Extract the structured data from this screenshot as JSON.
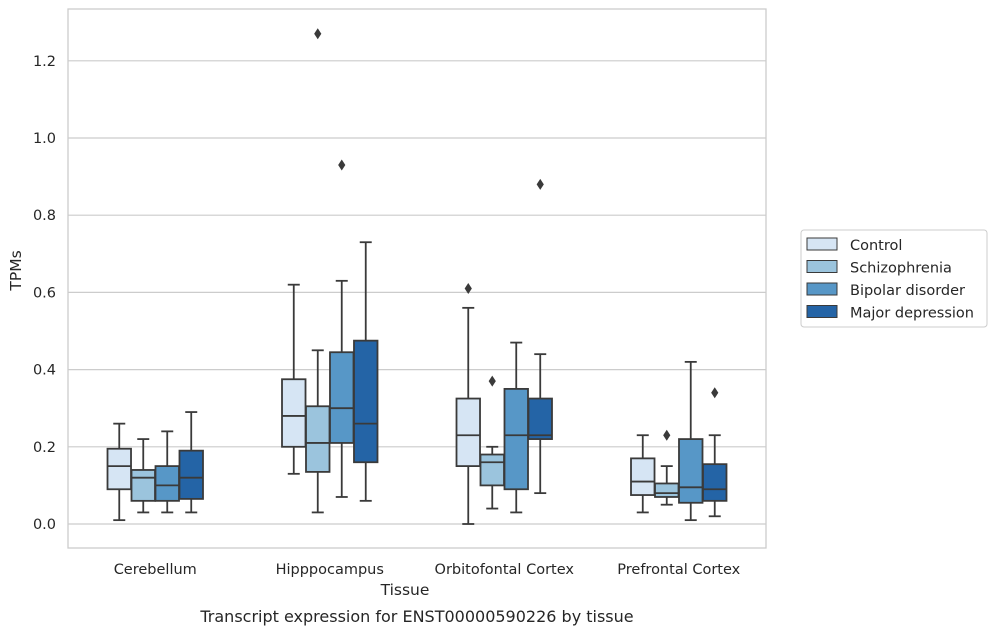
{
  "caption": "Transcript expression for ENST00000590226 by tissue",
  "chart_data": {
    "type": "boxplot",
    "title": "",
    "xlabel": "Tissue",
    "ylabel": "TPMs",
    "ylim": [
      -0.06,
      1.34
    ],
    "yticks": [
      0.0,
      0.2,
      0.4,
      0.6,
      0.8,
      1.0,
      1.2
    ],
    "ytick_labels": [
      "0.0",
      "0.2",
      "0.4",
      "0.6",
      "0.8",
      "1.0",
      "1.2"
    ],
    "grid": "horizontal",
    "legend_position": "right",
    "categories": [
      "Cerebellum",
      "Hipppocampus",
      "Orbitofontal Cortex",
      "Prefrontal Cortex"
    ],
    "series": [
      {
        "name": "Control",
        "color": "#d6e5f4",
        "boxes": [
          {
            "whisker_low": 0.01,
            "q1": 0.09,
            "median": 0.15,
            "q3": 0.195,
            "whisker_high": 0.26,
            "outliers": []
          },
          {
            "whisker_low": 0.13,
            "q1": 0.2,
            "median": 0.28,
            "q3": 0.375,
            "whisker_high": 0.62,
            "outliers": []
          },
          {
            "whisker_low": 0.0,
            "q1": 0.15,
            "median": 0.23,
            "q3": 0.325,
            "whisker_high": 0.56,
            "outliers": [
              0.61
            ]
          },
          {
            "whisker_low": 0.03,
            "q1": 0.075,
            "median": 0.11,
            "q3": 0.17,
            "whisker_high": 0.23,
            "outliers": []
          }
        ]
      },
      {
        "name": "Schizophrenia",
        "color": "#9bc4dd",
        "boxes": [
          {
            "whisker_low": 0.03,
            "q1": 0.06,
            "median": 0.12,
            "q3": 0.14,
            "whisker_high": 0.22,
            "outliers": []
          },
          {
            "whisker_low": 0.03,
            "q1": 0.135,
            "median": 0.21,
            "q3": 0.305,
            "whisker_high": 0.45,
            "outliers": [
              1.27
            ]
          },
          {
            "whisker_low": 0.04,
            "q1": 0.1,
            "median": 0.16,
            "q3": 0.18,
            "whisker_high": 0.2,
            "outliers": [
              0.37
            ]
          },
          {
            "whisker_low": 0.05,
            "q1": 0.07,
            "median": 0.08,
            "q3": 0.105,
            "whisker_high": 0.15,
            "outliers": [
              0.23
            ]
          }
        ]
      },
      {
        "name": "Bipolar disorder",
        "color": "#5797c7",
        "boxes": [
          {
            "whisker_low": 0.03,
            "q1": 0.06,
            "median": 0.1,
            "q3": 0.15,
            "whisker_high": 0.24,
            "outliers": []
          },
          {
            "whisker_low": 0.07,
            "q1": 0.21,
            "median": 0.3,
            "q3": 0.445,
            "whisker_high": 0.63,
            "outliers": [
              0.93
            ]
          },
          {
            "whisker_low": 0.03,
            "q1": 0.09,
            "median": 0.23,
            "q3": 0.35,
            "whisker_high": 0.47,
            "outliers": []
          },
          {
            "whisker_low": 0.01,
            "q1": 0.055,
            "median": 0.095,
            "q3": 0.22,
            "whisker_high": 0.42,
            "outliers": []
          }
        ]
      },
      {
        "name": "Major depression",
        "color": "#2464a6",
        "boxes": [
          {
            "whisker_low": 0.03,
            "q1": 0.065,
            "median": 0.12,
            "q3": 0.19,
            "whisker_high": 0.29,
            "outliers": []
          },
          {
            "whisker_low": 0.06,
            "q1": 0.16,
            "median": 0.26,
            "q3": 0.475,
            "whisker_high": 0.73,
            "outliers": []
          },
          {
            "whisker_low": 0.08,
            "q1": 0.22,
            "median": 0.23,
            "q3": 0.325,
            "whisker_high": 0.44,
            "outliers": [
              0.88
            ]
          },
          {
            "whisker_low": 0.02,
            "q1": 0.06,
            "median": 0.09,
            "q3": 0.155,
            "whisker_high": 0.23,
            "outliers": [
              0.34
            ]
          }
        ]
      }
    ]
  }
}
